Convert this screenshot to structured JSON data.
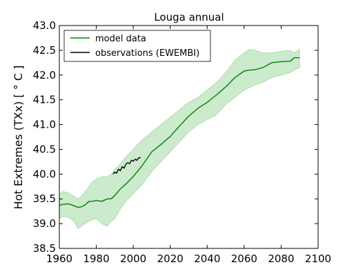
{
  "chart_data": {
    "type": "line",
    "title": "Louga annual",
    "xlabel": "",
    "ylabel": "Hot Extremes (TXx) [$^\\circ C$]",
    "ylabel_display": "Hot Extremes (TXx) [ ° C ]",
    "xlim": [
      1960,
      2100
    ],
    "ylim": [
      38.5,
      43.0
    ],
    "xticks": [
      1960,
      1980,
      2000,
      2020,
      2040,
      2060,
      2080,
      2100
    ],
    "yticks": [
      "38.5",
      "39.0",
      "39.5",
      "40.0",
      "40.5",
      "41.0",
      "41.5",
      "42.0",
      "42.5",
      "43.0"
    ],
    "grid": false,
    "legend_position": "top-left",
    "series": [
      {
        "name": "model data",
        "color": "#008000",
        "x": [
          1960,
          1962,
          1965,
          1968,
          1970,
          1972,
          1974,
          1976,
          1978,
          1980,
          1983,
          1986,
          1988,
          1990,
          1993,
          1996,
          2000,
          2005,
          2010,
          2015,
          2020,
          2025,
          2030,
          2035,
          2040,
          2045,
          2050,
          2055,
          2060,
          2063,
          2066,
          2070,
          2075,
          2080,
          2085,
          2087,
          2090
        ],
        "values": [
          39.37,
          39.39,
          39.4,
          39.36,
          39.33,
          39.34,
          39.38,
          39.45,
          39.45,
          39.47,
          39.45,
          39.5,
          39.5,
          39.57,
          39.7,
          39.8,
          39.95,
          40.18,
          40.45,
          40.6,
          40.76,
          40.97,
          41.17,
          41.33,
          41.45,
          41.6,
          41.76,
          41.95,
          42.08,
          42.1,
          42.11,
          42.15,
          42.25,
          42.27,
          42.28,
          42.35,
          42.35
        ]
      },
      {
        "name": "observations (EWEMBI)",
        "color": "#000000",
        "x": [
          1989,
          1990,
          1991,
          1992,
          1993,
          1994,
          1995,
          1996,
          1997,
          1998,
          1999,
          2000,
          2001,
          2002,
          2003,
          2004
        ],
        "values": [
          40.0,
          40.04,
          40.02,
          40.1,
          40.07,
          40.15,
          40.12,
          40.2,
          40.23,
          40.21,
          40.28,
          40.26,
          40.3,
          40.28,
          40.33,
          40.33
        ]
      }
    ],
    "band": {
      "color": "#8fd18f",
      "x": [
        1960,
        1962,
        1965,
        1968,
        1970,
        1972,
        1974,
        1976,
        1978,
        1980,
        1983,
        1986,
        1988,
        1990,
        1993,
        1996,
        2000,
        2005,
        2010,
        2015,
        2020,
        2025,
        2030,
        2035,
        2040,
        2045,
        2050,
        2055,
        2060,
        2063,
        2066,
        2070,
        2075,
        2080,
        2085,
        2087,
        2090
      ],
      "lower": [
        39.1,
        39.15,
        39.12,
        39.05,
        38.9,
        38.95,
        39.0,
        39.05,
        39.08,
        39.1,
        39.0,
        38.95,
        39.05,
        39.1,
        39.3,
        39.45,
        39.6,
        39.8,
        40.05,
        40.25,
        40.45,
        40.65,
        40.85,
        41.0,
        41.1,
        41.2,
        41.4,
        41.55,
        41.7,
        41.75,
        41.8,
        41.85,
        41.95,
        42.0,
        42.05,
        42.1,
        42.15
      ],
      "upper": [
        39.6,
        39.65,
        39.62,
        39.55,
        39.5,
        39.55,
        39.65,
        39.75,
        39.85,
        39.9,
        39.95,
        39.95,
        40.0,
        40.1,
        40.2,
        40.35,
        40.5,
        40.7,
        40.85,
        41.0,
        41.15,
        41.3,
        41.45,
        41.55,
        41.7,
        41.85,
        42.05,
        42.3,
        42.45,
        42.52,
        42.5,
        42.45,
        42.45,
        42.48,
        42.5,
        42.45,
        42.52
      ]
    }
  }
}
